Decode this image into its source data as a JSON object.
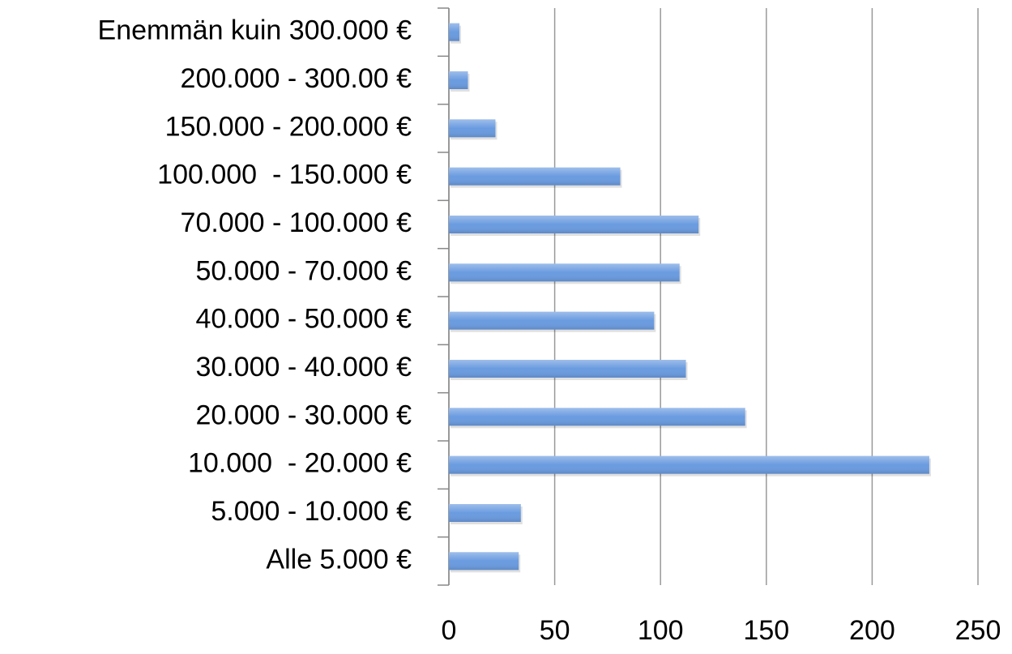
{
  "chart_data": {
    "type": "barh",
    "categories": [
      "Enemmän kuin 300.000 €",
      "200.000 - 300.00 €",
      "150.000 - 200.000 €",
      "100.000  - 150.000 €",
      "70.000 - 100.000 €",
      "50.000 - 70.000 €",
      "40.000 - 50.000 €",
      "30.000 - 40.000 €",
      "20.000 - 30.000 €",
      "10.000  - 20.000 €",
      "5.000 - 10.000 €",
      "Alle 5.000 €"
    ],
    "values": [
      5,
      9,
      22,
      81,
      118,
      109,
      97,
      112,
      140,
      227,
      34,
      33
    ],
    "color": "#6a9be0",
    "xlim": [
      0,
      250
    ],
    "xticks": [
      0,
      50,
      100,
      150,
      200,
      250
    ],
    "grid": true
  }
}
